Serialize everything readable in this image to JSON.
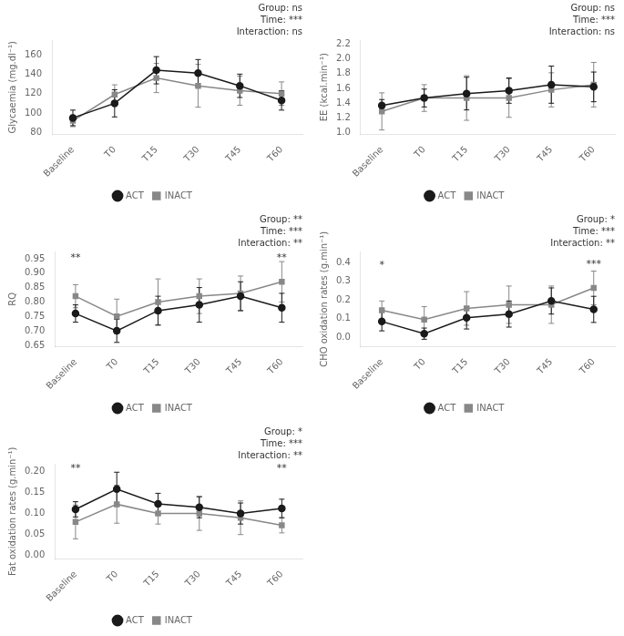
{
  "chart_data": [
    {
      "type": "line",
      "categories": [
        "Baseline",
        "T0",
        "T15",
        "T30",
        "T45",
        "T60"
      ],
      "series": [
        {
          "name": "ACT",
          "color": "#1a1a1a",
          "marker": "circle",
          "values": [
            95,
            110,
            144,
            141,
            128,
            113
          ],
          "errors": [
            8,
            14,
            14,
            14,
            12,
            10
          ]
        },
        {
          "name": "INACT",
          "color": "#888888",
          "marker": "square",
          "values": [
            92,
            119,
            136,
            128,
            123,
            120
          ],
          "errors": [
            6,
            10,
            15,
            22,
            15,
            12
          ]
        }
      ],
      "ylabel": "Glycaemia (mg.dl⁻¹)",
      "ylim": [
        78,
        175
      ],
      "yticks": [
        80,
        100,
        120,
        140,
        160
      ],
      "grid": false,
      "legend": "bottom",
      "annotations": [
        {
          "text": "Group: ns\nTime: ***\nInteraction: ns"
        }
      ]
    },
    {
      "type": "line",
      "categories": [
        "Baseline",
        "T0",
        "T15",
        "T30",
        "T45",
        "T60"
      ],
      "series": [
        {
          "name": "ACT",
          "color": "#1a1a1a",
          "marker": "circle",
          "values": [
            1.37,
            1.47,
            1.53,
            1.57,
            1.65,
            1.62
          ],
          "errors": [
            0.08,
            0.12,
            0.22,
            0.17,
            0.25,
            0.2
          ]
        },
        {
          "name": "INACT",
          "color": "#888888",
          "marker": "square",
          "values": [
            1.29,
            1.47,
            1.47,
            1.47,
            1.58,
            1.65
          ],
          "errors": [
            0.25,
            0.18,
            0.3,
            0.26,
            0.23,
            0.3
          ]
        }
      ],
      "ylabel": "EE (kcal.min⁻¹)",
      "ylim": [
        0.98,
        2.25
      ],
      "yticks": [
        {
          "value": 1.0,
          "label": "1.0"
        },
        1.2,
        1.4,
        1.6,
        1.8,
        {
          "value": 2.0,
          "label": "2.0"
        },
        2.2
      ],
      "grid": false,
      "legend": "bottom",
      "annotations": [
        {
          "text": "Group: ns\nTime: ***\nInteraction: ns"
        }
      ]
    },
    {
      "type": "line",
      "categories": [
        "Baseline",
        "T0",
        "T15",
        "T30",
        "T45",
        "T60"
      ],
      "series": [
        {
          "name": "ACT",
          "color": "#1a1a1a",
          "marker": "circle",
          "values": [
            0.76,
            0.7,
            0.77,
            0.79,
            0.82,
            0.78
          ],
          "errors": [
            0.03,
            0.04,
            0.05,
            0.06,
            0.05,
            0.05
          ]
        },
        {
          "name": "INACT",
          "color": "#888888",
          "marker": "square",
          "values": [
            0.82,
            0.75,
            0.8,
            0.82,
            0.83,
            0.87
          ],
          "errors": [
            0.04,
            0.06,
            0.08,
            0.06,
            0.06,
            0.07
          ]
        }
      ],
      "ylabel": "RQ",
      "ylim": [
        0.645,
        0.975
      ],
      "yticks": [
        0.65,
        {
          "value": 0.7,
          "label": "0.70"
        },
        0.75,
        {
          "value": 0.8,
          "label": "0.80"
        },
        0.85,
        {
          "value": 0.9,
          "label": "0.90"
        },
        0.95
      ],
      "grid": false,
      "legend": "bottom",
      "annotations": [
        {
          "text": "Group: **\nTime: ***\nInteraction: **"
        },
        {
          "text": "**",
          "x": "Baseline",
          "y": 0.935
        },
        {
          "text": "**",
          "x": "T60",
          "y": 0.935
        }
      ]
    },
    {
      "type": "line",
      "categories": [
        "Baseline",
        "T0",
        "T15",
        "T30",
        "T45",
        "T60"
      ],
      "series": [
        {
          "name": "ACT",
          "color": "#1a1a1a",
          "marker": "circle",
          "values": [
            0.085,
            0.02,
            0.105,
            0.125,
            0.195,
            0.15
          ],
          "errors": [
            0.05,
            0.03,
            0.06,
            0.07,
            0.07,
            0.07
          ]
        },
        {
          "name": "INACT",
          "color": "#888888",
          "marker": "square",
          "values": [
            0.145,
            0.095,
            0.155,
            0.175,
            0.175,
            0.265
          ],
          "errors": [
            0.05,
            0.07,
            0.09,
            0.1,
            0.1,
            0.09
          ]
        }
      ],
      "ylabel": "CHO oxidation rates (g.min⁻¹)",
      "ylim": [
        -0.05,
        0.46
      ],
      "yticks": [
        {
          "value": 0.0,
          "label": "0.0"
        },
        0.1,
        0.2,
        0.3,
        0.4
      ],
      "grid": false,
      "legend": "bottom",
      "annotations": [
        {
          "text": "Group: *\nTime: ***\nInteraction: **"
        },
        {
          "text": "*",
          "x": "Baseline",
          "y": 0.36
        },
        {
          "text": "***",
          "x": "T60",
          "y": 0.365
        }
      ]
    },
    {
      "type": "line",
      "categories": [
        "Baseline",
        "T0",
        "T15",
        "T30",
        "T45",
        "T60"
      ],
      "series": [
        {
          "name": "ACT",
          "color": "#1a1a1a",
          "marker": "circle",
          "values": [
            0.11,
            0.158,
            0.123,
            0.115,
            0.1,
            0.112
          ],
          "errors": [
            0.018,
            0.04,
            0.025,
            0.025,
            0.025,
            0.022
          ]
        },
        {
          "name": "INACT",
          "color": "#888888",
          "marker": "square",
          "values": [
            0.08,
            0.122,
            0.1,
            0.1,
            0.09,
            0.072
          ],
          "errors": [
            0.04,
            0.045,
            0.025,
            0.04,
            0.04,
            0.018
          ]
        }
      ],
      "ylabel": "Fat oxidation rates (g.min⁻¹)",
      "ylim": [
        -0.008,
        0.218
      ],
      "yticks": [
        {
          "value": 0.0,
          "label": "0.00"
        },
        0.05,
        {
          "value": 0.1,
          "label": "0.10"
        },
        0.15,
        {
          "value": 0.2,
          "label": "0.20"
        }
      ],
      "grid": false,
      "legend": "bottom",
      "annotations": [
        {
          "text": "Group: *\nTime: ***\nInteraction: **"
        },
        {
          "text": "**",
          "x": "Baseline",
          "y": 0.196
        },
        {
          "text": "**",
          "x": "T60",
          "y": 0.196
        }
      ]
    }
  ]
}
